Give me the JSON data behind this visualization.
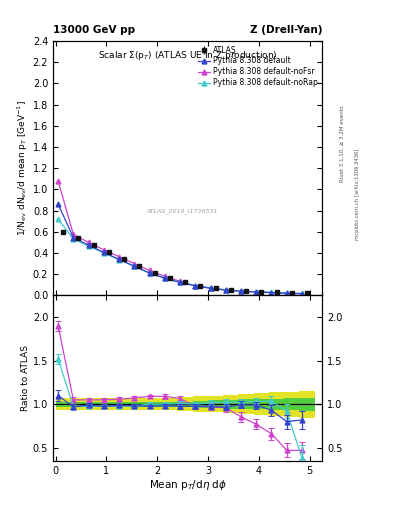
{
  "title_left": "13000 GeV pp",
  "title_right": "Z (Drell-Yan)",
  "plot_title": "Scalar Σ(pₜ) (ATLAS UE in Z production)",
  "ylabel_main": "1/N$_{ev}$ dN$_{ev}$/d mean p$_T$ [GeV$^{-1}$]",
  "ylabel_ratio": "Ratio to ATLAS",
  "xlabel": "Mean p$_T$/d$\\eta$ d$\\phi$",
  "watermark": "ATLAS_2019_I1736531",
  "side_text1": "Rivet 3.1.10, ≥ 3.2M events",
  "side_text2": "mcplots.cern.ch [arXiv:1306.3436]",
  "x_atlas": [
    0.15,
    0.45,
    0.75,
    1.05,
    1.35,
    1.65,
    1.95,
    2.25,
    2.55,
    2.85,
    3.15,
    3.45,
    3.75,
    4.05,
    4.35,
    4.65,
    4.95
  ],
  "y_atlas": [
    0.6,
    0.545,
    0.475,
    0.41,
    0.345,
    0.28,
    0.215,
    0.165,
    0.125,
    0.092,
    0.07,
    0.052,
    0.04,
    0.033,
    0.028,
    0.024,
    0.02
  ],
  "y_atlas_err": [
    0.02,
    0.015,
    0.013,
    0.011,
    0.009,
    0.008,
    0.007,
    0.006,
    0.005,
    0.004,
    0.003,
    0.003,
    0.002,
    0.002,
    0.002,
    0.003,
    0.003
  ],
  "x_mc": [
    0.05,
    0.35,
    0.65,
    0.95,
    1.25,
    1.55,
    1.85,
    2.15,
    2.45,
    2.75,
    3.05,
    3.35,
    3.65,
    3.95,
    4.25,
    4.55,
    4.85
  ],
  "y_default": [
    0.86,
    0.545,
    0.475,
    0.405,
    0.34,
    0.275,
    0.21,
    0.162,
    0.122,
    0.09,
    0.068,
    0.05,
    0.04,
    0.033,
    0.027,
    0.02,
    0.017
  ],
  "y_nofsr": [
    1.08,
    0.575,
    0.5,
    0.43,
    0.365,
    0.3,
    0.235,
    0.18,
    0.133,
    0.09,
    0.068,
    0.05,
    0.04,
    0.032,
    0.026,
    0.02,
    0.017
  ],
  "y_norap": [
    0.72,
    0.53,
    0.465,
    0.4,
    0.338,
    0.275,
    0.212,
    0.163,
    0.124,
    0.092,
    0.071,
    0.053,
    0.041,
    0.034,
    0.029,
    0.022,
    0.019
  ],
  "ratio_default": [
    1.1,
    0.97,
    0.99,
    0.975,
    0.987,
    0.982,
    0.975,
    0.982,
    0.975,
    0.978,
    0.975,
    0.965,
    0.996,
    0.99,
    0.93,
    0.8,
    0.82
  ],
  "ratio_default_err": [
    0.06,
    0.03,
    0.025,
    0.022,
    0.02,
    0.018,
    0.02,
    0.025,
    0.025,
    0.03,
    0.03,
    0.035,
    0.04,
    0.04,
    0.06,
    0.08,
    0.1
  ],
  "ratio_nofsr": [
    1.9,
    1.05,
    1.05,
    1.05,
    1.058,
    1.072,
    1.09,
    1.09,
    1.065,
    0.978,
    0.97,
    0.96,
    0.855,
    0.77,
    0.66,
    0.47,
    0.47
  ],
  "ratio_nofsr_err": [
    0.06,
    0.03,
    0.025,
    0.022,
    0.02,
    0.018,
    0.02,
    0.025,
    0.025,
    0.03,
    0.04,
    0.05,
    0.06,
    0.06,
    0.07,
    0.08,
    0.1
  ],
  "ratio_norap": [
    1.52,
    0.97,
    0.979,
    0.977,
    0.98,
    0.983,
    1.0,
    1.0,
    1.008,
    1.0,
    1.015,
    1.022,
    1.025,
    1.03,
    1.035,
    0.92,
    0.38
  ],
  "ratio_norap_err": [
    0.06,
    0.03,
    0.025,
    0.022,
    0.02,
    0.018,
    0.02,
    0.025,
    0.025,
    0.03,
    0.03,
    0.035,
    0.04,
    0.04,
    0.06,
    0.08,
    0.15
  ],
  "atlas_band_x": [
    0.0,
    0.3,
    0.6,
    0.9,
    1.2,
    1.5,
    1.8,
    2.1,
    2.4,
    2.7,
    3.0,
    3.3,
    3.6,
    3.9,
    4.2,
    4.5,
    4.8
  ],
  "atlas_band_bw": 0.3,
  "atlas_band_inner_lo": [
    0.97,
    0.97,
    0.97,
    0.97,
    0.97,
    0.97,
    0.97,
    0.97,
    0.97,
    0.96,
    0.955,
    0.95,
    0.945,
    0.94,
    0.935,
    0.93,
    0.925
  ],
  "atlas_band_inner_hi": [
    1.03,
    1.03,
    1.03,
    1.03,
    1.03,
    1.03,
    1.03,
    1.03,
    1.03,
    1.04,
    1.045,
    1.05,
    1.055,
    1.06,
    1.065,
    1.07,
    1.075
  ],
  "atlas_band_outer_lo": [
    0.93,
    0.93,
    0.93,
    0.93,
    0.93,
    0.93,
    0.93,
    0.93,
    0.92,
    0.91,
    0.905,
    0.895,
    0.885,
    0.875,
    0.865,
    0.855,
    0.845
  ],
  "atlas_band_outer_hi": [
    1.07,
    1.07,
    1.07,
    1.07,
    1.07,
    1.07,
    1.07,
    1.07,
    1.08,
    1.09,
    1.095,
    1.105,
    1.115,
    1.125,
    1.135,
    1.145,
    1.155
  ],
  "color_default": "#3344cc",
  "color_nofsr": "#cc44cc",
  "color_norap": "#44cccc",
  "color_atlas": "#111111",
  "color_band_inner": "#44cc44",
  "color_band_outer": "#dddd00",
  "xlim": [
    -0.05,
    5.25
  ],
  "ylim_main": [
    0.0,
    2.4
  ],
  "ylim_ratio": [
    0.35,
    2.25
  ],
  "yticks_main": [
    0.0,
    0.2,
    0.4,
    0.6,
    0.8,
    1.0,
    1.2,
    1.4,
    1.6,
    1.8,
    2.0,
    2.2,
    2.4
  ],
  "yticks_ratio": [
    0.5,
    1.0,
    1.5,
    2.0
  ]
}
